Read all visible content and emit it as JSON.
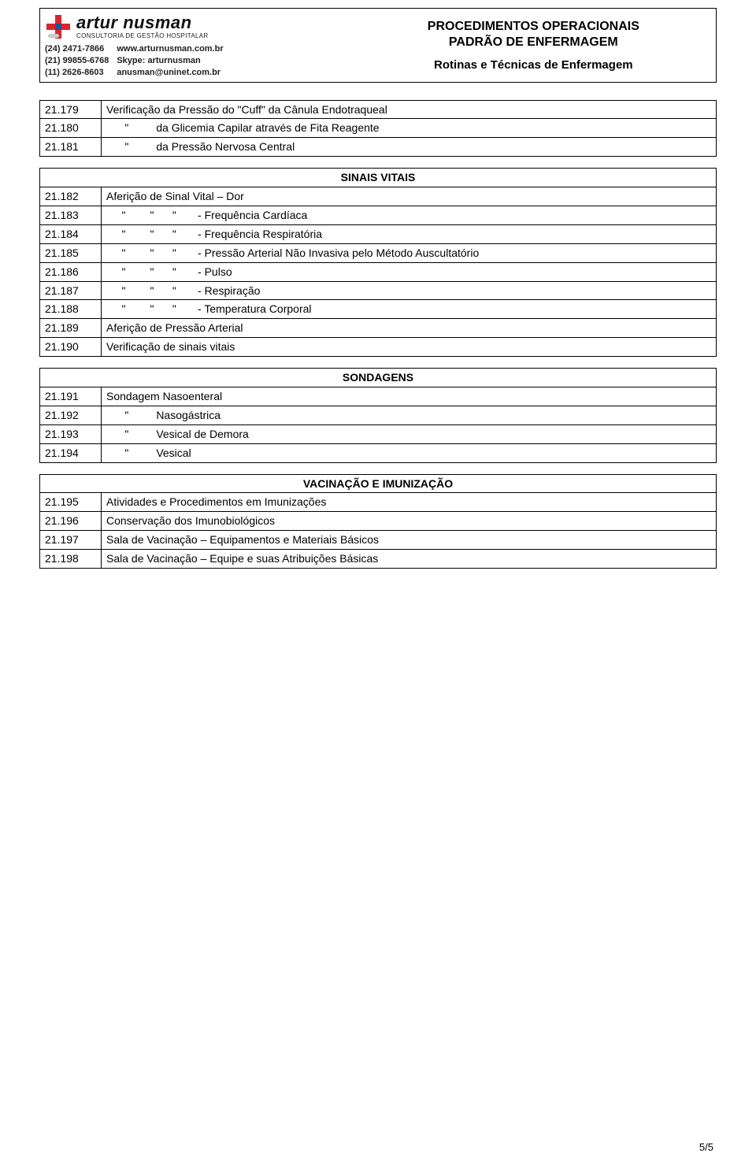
{
  "header": {
    "logo_name": "artur nusman",
    "logo_sub": "CONSULTORIA DE GESTÃO HOSPITALAR",
    "contacts_left": [
      "(24) 2471-7866",
      "(21) 99855-6768",
      "(11) 2626-8603"
    ],
    "contacts_right_labels": [
      "www.arturnusman.com.br",
      "Skype: arturnusman",
      "anusman@uninet.com.br"
    ],
    "title_line1": "PROCEDIMENTOS OPERACIONAIS",
    "title_line2": "PADRÃO DE ENFERMAGEM",
    "subtitle": "Rotinas e Técnicas de Enfermagem",
    "logo_colors": {
      "red": "#d9252a",
      "blue": "#2a4e9b",
      "pill": "#c9c9c9"
    }
  },
  "tables": [
    {
      "rows": [
        {
          "code": "21.179",
          "desc": "Verificação da Pressão do \"Cuff\" da Cânula Endotraqueal"
        },
        {
          "code": "21.180",
          "desc": "      \"         da Glicemia Capilar através de Fita Reagente"
        },
        {
          "code": "21.181",
          "desc": "      \"         da Pressão Nervosa Central"
        }
      ]
    },
    {
      "section": "SINAIS VITAIS",
      "rows": [
        {
          "code": "21.182",
          "desc": "Aferição de Sinal Vital – Dor"
        },
        {
          "code": "21.183",
          "desc": "     \"        \"      \"       - Frequência Cardíaca"
        },
        {
          "code": "21.184",
          "desc": "     \"        \"      \"       - Frequência Respiratória"
        },
        {
          "code": "21.185",
          "desc": "     \"        \"      \"       - Pressão Arterial Não Invasiva pelo Método Auscultatório"
        },
        {
          "code": "21.186",
          "desc": "     \"        \"      \"       - Pulso"
        },
        {
          "code": "21.187",
          "desc": "     \"        \"      \"       - Respiração"
        },
        {
          "code": "21.188",
          "desc": "     \"        \"      \"       - Temperatura Corporal"
        },
        {
          "code": "21.189",
          "desc": "Aferição de Pressão Arterial"
        },
        {
          "code": "21.190",
          "desc": "Verificação de sinais vitais"
        }
      ]
    },
    {
      "section": "SONDAGENS",
      "rows": [
        {
          "code": "21.191",
          "desc": "Sondagem Nasoenteral"
        },
        {
          "code": "21.192",
          "desc": "      \"         Nasogástrica"
        },
        {
          "code": "21.193",
          "desc": "      \"         Vesical de Demora"
        },
        {
          "code": "21.194",
          "desc": "      \"         Vesical"
        }
      ]
    },
    {
      "section": "VACINAÇÃO E IMUNIZAÇÃO",
      "rows": [
        {
          "code": "21.195",
          "desc": "Atividades e Procedimentos em Imunizações"
        },
        {
          "code": "21.196",
          "desc": "Conservação dos Imunobiológicos"
        },
        {
          "code": "21.197",
          "desc": "Sala de Vacinação – Equipamentos e Materiais Básicos"
        },
        {
          "code": "21.198",
          "desc": "Sala de Vacinação – Equipe e suas Atribuições Básicas"
        }
      ]
    }
  ],
  "page_number": "5/5"
}
